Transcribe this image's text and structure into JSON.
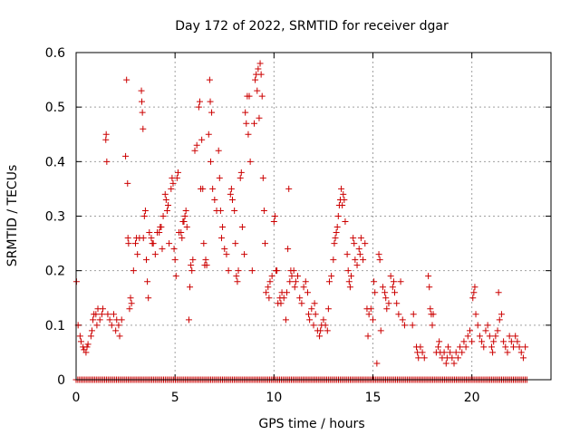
{
  "chart_data": {
    "type": "scatter",
    "title": "Day 172 of 2022, SRMTID for receiver dgar",
    "xlabel": "GPS time / hours",
    "ylabel": "SRMTID / TECUs",
    "xlim": [
      0,
      24
    ],
    "ylim": [
      0,
      0.6
    ],
    "xticks": [
      0,
      5,
      10,
      15,
      20
    ],
    "yticks": [
      0,
      0.1,
      0.2,
      0.3,
      0.4,
      0.5,
      0.6
    ],
    "xtick_labels": [
      "0",
      "5",
      "10",
      "15",
      "20"
    ],
    "ytick_labels": [
      "0",
      "0.1",
      "0.2",
      "0.3",
      "0.4",
      "0.5",
      "0.6"
    ],
    "grid": true,
    "marker": "+",
    "color": "#cc0000",
    "zero_series": {
      "x_start": 0.0,
      "x_end": 22.8,
      "step": 0.085,
      "y": 0
    },
    "points": [
      [
        0.02,
        0.18
      ],
      [
        0.1,
        0.1
      ],
      [
        0.2,
        0.08
      ],
      [
        0.25,
        0.07
      ],
      [
        0.35,
        0.06
      ],
      [
        0.4,
        0.055
      ],
      [
        0.5,
        0.05
      ],
      [
        0.55,
        0.06
      ],
      [
        0.6,
        0.065
      ],
      [
        0.75,
        0.08
      ],
      [
        0.8,
        0.09
      ],
      [
        0.85,
        0.11
      ],
      [
        0.9,
        0.12
      ],
      [
        1.0,
        0.12
      ],
      [
        1.05,
        0.1
      ],
      [
        1.1,
        0.13
      ],
      [
        1.2,
        0.11
      ],
      [
        1.3,
        0.12
      ],
      [
        1.35,
        0.13
      ],
      [
        1.5,
        0.44
      ],
      [
        1.52,
        0.45
      ],
      [
        1.55,
        0.4
      ],
      [
        1.6,
        0.12
      ],
      [
        1.7,
        0.11
      ],
      [
        1.8,
        0.1
      ],
      [
        1.9,
        0.12
      ],
      [
        2.0,
        0.09
      ],
      [
        2.05,
        0.11
      ],
      [
        2.15,
        0.1
      ],
      [
        2.2,
        0.08
      ],
      [
        2.3,
        0.11
      ],
      [
        2.5,
        0.41
      ],
      [
        2.55,
        0.55
      ],
      [
        2.6,
        0.36
      ],
      [
        2.62,
        0.26
      ],
      [
        2.65,
        0.25
      ],
      [
        2.7,
        0.13
      ],
      [
        2.75,
        0.15
      ],
      [
        2.8,
        0.14
      ],
      [
        2.9,
        0.2
      ],
      [
        3.0,
        0.25
      ],
      [
        3.05,
        0.26
      ],
      [
        3.1,
        0.23
      ],
      [
        3.2,
        0.26
      ],
      [
        3.3,
        0.53
      ],
      [
        3.32,
        0.51
      ],
      [
        3.35,
        0.49
      ],
      [
        3.38,
        0.46
      ],
      [
        3.4,
        0.26
      ],
      [
        3.45,
        0.3
      ],
      [
        3.5,
        0.31
      ],
      [
        3.55,
        0.22
      ],
      [
        3.6,
        0.18
      ],
      [
        3.65,
        0.15
      ],
      [
        3.7,
        0.27
      ],
      [
        3.8,
        0.26
      ],
      [
        3.85,
        0.25
      ],
      [
        3.9,
        0.25
      ],
      [
        4.0,
        0.23
      ],
      [
        4.1,
        0.27
      ],
      [
        4.2,
        0.27
      ],
      [
        4.25,
        0.28
      ],
      [
        4.3,
        0.28
      ],
      [
        4.35,
        0.24
      ],
      [
        4.4,
        0.3
      ],
      [
        4.5,
        0.34
      ],
      [
        4.55,
        0.33
      ],
      [
        4.6,
        0.31
      ],
      [
        4.65,
        0.32
      ],
      [
        4.7,
        0.25
      ],
      [
        4.8,
        0.35
      ],
      [
        4.85,
        0.37
      ],
      [
        4.9,
        0.36
      ],
      [
        4.95,
        0.24
      ],
      [
        5.0,
        0.22
      ],
      [
        5.05,
        0.19
      ],
      [
        5.1,
        0.37
      ],
      [
        5.15,
        0.38
      ],
      [
        5.2,
        0.27
      ],
      [
        5.3,
        0.27
      ],
      [
        5.35,
        0.26
      ],
      [
        5.4,
        0.29
      ],
      [
        5.45,
        0.29
      ],
      [
        5.5,
        0.3
      ],
      [
        5.55,
        0.31
      ],
      [
        5.6,
        0.28
      ],
      [
        5.7,
        0.11
      ],
      [
        5.75,
        0.17
      ],
      [
        5.8,
        0.21
      ],
      [
        5.85,
        0.2
      ],
      [
        5.9,
        0.22
      ],
      [
        6.0,
        0.42
      ],
      [
        6.1,
        0.43
      ],
      [
        6.2,
        0.5
      ],
      [
        6.25,
        0.51
      ],
      [
        6.3,
        0.35
      ],
      [
        6.35,
        0.44
      ],
      [
        6.4,
        0.35
      ],
      [
        6.45,
        0.25
      ],
      [
        6.5,
        0.21
      ],
      [
        6.55,
        0.22
      ],
      [
        6.6,
        0.21
      ],
      [
        6.7,
        0.45
      ],
      [
        6.75,
        0.55
      ],
      [
        6.78,
        0.51
      ],
      [
        6.8,
        0.4
      ],
      [
        6.85,
        0.49
      ],
      [
        6.9,
        0.35
      ],
      [
        7.0,
        0.33
      ],
      [
        7.1,
        0.31
      ],
      [
        7.2,
        0.42
      ],
      [
        7.25,
        0.37
      ],
      [
        7.3,
        0.31
      ],
      [
        7.35,
        0.26
      ],
      [
        7.4,
        0.28
      ],
      [
        7.5,
        0.24
      ],
      [
        7.6,
        0.23
      ],
      [
        7.7,
        0.2
      ],
      [
        7.8,
        0.34
      ],
      [
        7.85,
        0.35
      ],
      [
        7.9,
        0.33
      ],
      [
        8.0,
        0.31
      ],
      [
        8.05,
        0.25
      ],
      [
        8.1,
        0.19
      ],
      [
        8.15,
        0.18
      ],
      [
        8.2,
        0.2
      ],
      [
        8.3,
        0.37
      ],
      [
        8.35,
        0.38
      ],
      [
        8.4,
        0.28
      ],
      [
        8.5,
        0.23
      ],
      [
        8.55,
        0.49
      ],
      [
        8.6,
        0.47
      ],
      [
        8.65,
        0.52
      ],
      [
        8.7,
        0.45
      ],
      [
        8.75,
        0.52
      ],
      [
        8.8,
        0.4
      ],
      [
        8.9,
        0.2
      ],
      [
        9.0,
        0.47
      ],
      [
        9.05,
        0.55
      ],
      [
        9.1,
        0.56
      ],
      [
        9.15,
        0.53
      ],
      [
        9.2,
        0.57
      ],
      [
        9.25,
        0.48
      ],
      [
        9.3,
        0.58
      ],
      [
        9.35,
        0.56
      ],
      [
        9.4,
        0.52
      ],
      [
        9.45,
        0.37
      ],
      [
        9.5,
        0.31
      ],
      [
        9.55,
        0.25
      ],
      [
        9.6,
        0.16
      ],
      [
        9.7,
        0.17
      ],
      [
        9.75,
        0.15
      ],
      [
        9.8,
        0.18
      ],
      [
        9.9,
        0.19
      ],
      [
        10.0,
        0.29
      ],
      [
        10.05,
        0.3
      ],
      [
        10.1,
        0.2
      ],
      [
        10.15,
        0.2
      ],
      [
        10.2,
        0.14
      ],
      [
        10.3,
        0.15
      ],
      [
        10.35,
        0.14
      ],
      [
        10.4,
        0.16
      ],
      [
        10.5,
        0.15
      ],
      [
        10.6,
        0.11
      ],
      [
        10.65,
        0.16
      ],
      [
        10.7,
        0.24
      ],
      [
        10.75,
        0.35
      ],
      [
        10.8,
        0.18
      ],
      [
        10.85,
        0.2
      ],
      [
        10.9,
        0.19
      ],
      [
        11.0,
        0.2
      ],
      [
        11.05,
        0.17
      ],
      [
        11.1,
        0.18
      ],
      [
        11.2,
        0.19
      ],
      [
        11.3,
        0.15
      ],
      [
        11.4,
        0.14
      ],
      [
        11.5,
        0.17
      ],
      [
        11.6,
        0.18
      ],
      [
        11.7,
        0.16
      ],
      [
        11.75,
        0.12
      ],
      [
        11.8,
        0.11
      ],
      [
        11.9,
        0.13
      ],
      [
        12.0,
        0.1
      ],
      [
        12.05,
        0.14
      ],
      [
        12.1,
        0.12
      ],
      [
        12.2,
        0.09
      ],
      [
        12.3,
        0.08
      ],
      [
        12.35,
        0.09
      ],
      [
        12.4,
        0.1
      ],
      [
        12.5,
        0.11
      ],
      [
        12.6,
        0.1
      ],
      [
        12.7,
        0.09
      ],
      [
        12.75,
        0.13
      ],
      [
        12.8,
        0.18
      ],
      [
        12.9,
        0.19
      ],
      [
        13.0,
        0.22
      ],
      [
        13.05,
        0.25
      ],
      [
        13.1,
        0.26
      ],
      [
        13.15,
        0.27
      ],
      [
        13.2,
        0.28
      ],
      [
        13.25,
        0.3
      ],
      [
        13.3,
        0.32
      ],
      [
        13.35,
        0.33
      ],
      [
        13.4,
        0.35
      ],
      [
        13.45,
        0.32
      ],
      [
        13.5,
        0.34
      ],
      [
        13.55,
        0.33
      ],
      [
        13.6,
        0.29
      ],
      [
        13.7,
        0.23
      ],
      [
        13.75,
        0.2
      ],
      [
        13.8,
        0.18
      ],
      [
        13.85,
        0.17
      ],
      [
        13.9,
        0.19
      ],
      [
        14.0,
        0.26
      ],
      [
        14.05,
        0.25
      ],
      [
        14.1,
        0.22
      ],
      [
        14.2,
        0.21
      ],
      [
        14.3,
        0.24
      ],
      [
        14.35,
        0.23
      ],
      [
        14.4,
        0.26
      ],
      [
        14.5,
        0.22
      ],
      [
        14.6,
        0.25
      ],
      [
        14.7,
        0.13
      ],
      [
        14.75,
        0.08
      ],
      [
        14.8,
        0.12
      ],
      [
        14.9,
        0.13
      ],
      [
        15.0,
        0.11
      ],
      [
        15.05,
        0.18
      ],
      [
        15.1,
        0.16
      ],
      [
        15.2,
        0.03
      ],
      [
        15.3,
        0.23
      ],
      [
        15.35,
        0.22
      ],
      [
        15.4,
        0.09
      ],
      [
        15.5,
        0.17
      ],
      [
        15.6,
        0.16
      ],
      [
        15.65,
        0.15
      ],
      [
        15.7,
        0.13
      ],
      [
        15.8,
        0.14
      ],
      [
        15.9,
        0.19
      ],
      [
        16.0,
        0.17
      ],
      [
        16.05,
        0.18
      ],
      [
        16.1,
        0.16
      ],
      [
        16.2,
        0.14
      ],
      [
        16.3,
        0.12
      ],
      [
        16.4,
        0.18
      ],
      [
        16.5,
        0.11
      ],
      [
        16.6,
        0.1
      ],
      [
        17.0,
        0.1
      ],
      [
        17.05,
        0.12
      ],
      [
        17.2,
        0.06
      ],
      [
        17.25,
        0.05
      ],
      [
        17.3,
        0.04
      ],
      [
        17.4,
        0.06
      ],
      [
        17.5,
        0.05
      ],
      [
        17.6,
        0.04
      ],
      [
        17.8,
        0.19
      ],
      [
        17.85,
        0.17
      ],
      [
        17.9,
        0.13
      ],
      [
        17.95,
        0.12
      ],
      [
        18.0,
        0.1
      ],
      [
        18.05,
        0.12
      ],
      [
        18.2,
        0.05
      ],
      [
        18.3,
        0.06
      ],
      [
        18.35,
        0.07
      ],
      [
        18.4,
        0.05
      ],
      [
        18.5,
        0.04
      ],
      [
        18.6,
        0.05
      ],
      [
        18.7,
        0.03
      ],
      [
        18.75,
        0.04
      ],
      [
        18.8,
        0.06
      ],
      [
        18.9,
        0.05
      ],
      [
        19.0,
        0.04
      ],
      [
        19.1,
        0.03
      ],
      [
        19.2,
        0.05
      ],
      [
        19.3,
        0.04
      ],
      [
        19.4,
        0.06
      ],
      [
        19.5,
        0.05
      ],
      [
        19.6,
        0.07
      ],
      [
        19.7,
        0.06
      ],
      [
        19.8,
        0.08
      ],
      [
        19.9,
        0.09
      ],
      [
        20.0,
        0.07
      ],
      [
        20.05,
        0.15
      ],
      [
        20.1,
        0.16
      ],
      [
        20.15,
        0.17
      ],
      [
        20.2,
        0.12
      ],
      [
        20.3,
        0.1
      ],
      [
        20.4,
        0.08
      ],
      [
        20.5,
        0.07
      ],
      [
        20.6,
        0.06
      ],
      [
        20.7,
        0.09
      ],
      [
        20.8,
        0.1
      ],
      [
        20.9,
        0.08
      ],
      [
        21.0,
        0.06
      ],
      [
        21.05,
        0.05
      ],
      [
        21.1,
        0.07
      ],
      [
        21.2,
        0.08
      ],
      [
        21.3,
        0.09
      ],
      [
        21.35,
        0.16
      ],
      [
        21.4,
        0.11
      ],
      [
        21.5,
        0.12
      ],
      [
        21.6,
        0.07
      ],
      [
        21.7,
        0.06
      ],
      [
        21.8,
        0.05
      ],
      [
        21.9,
        0.08
      ],
      [
        22.0,
        0.07
      ],
      [
        22.1,
        0.06
      ],
      [
        22.2,
        0.08
      ],
      [
        22.3,
        0.07
      ],
      [
        22.4,
        0.06
      ],
      [
        22.5,
        0.05
      ],
      [
        22.6,
        0.04
      ],
      [
        22.7,
        0.06
      ]
    ]
  }
}
